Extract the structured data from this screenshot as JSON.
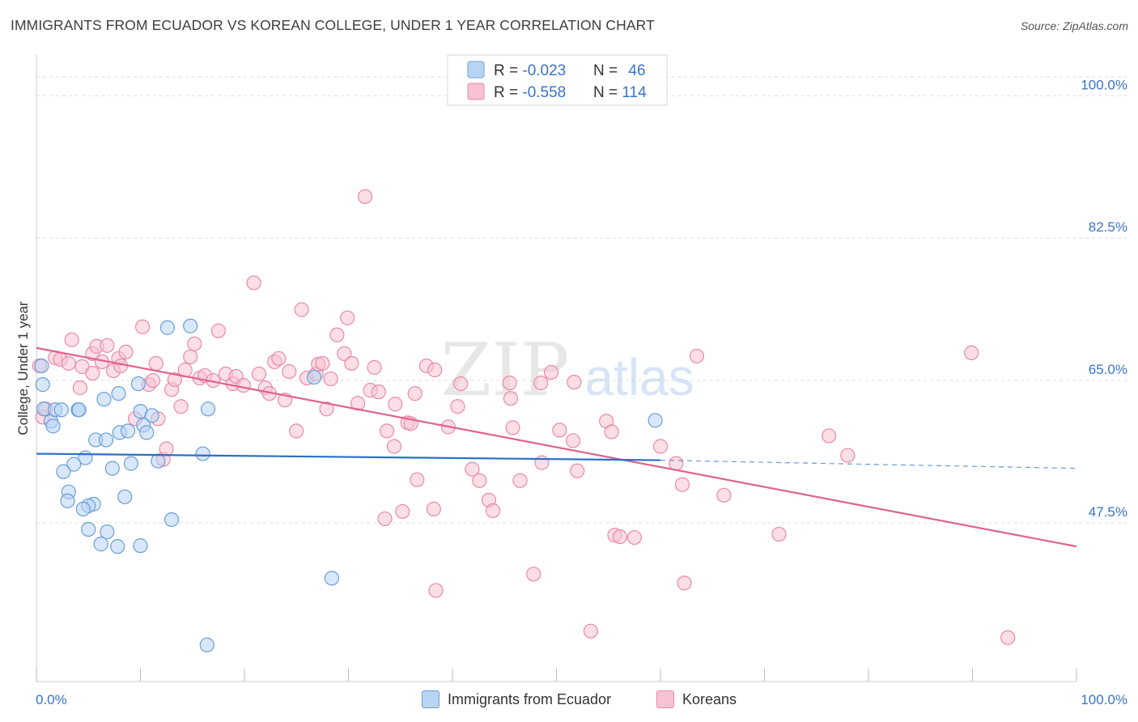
{
  "title": "IMMIGRANTS FROM ECUADOR VS KOREAN COLLEGE, UNDER 1 YEAR CORRELATION CHART",
  "source": "Source: ZipAtlas.com",
  "watermark": {
    "zip": "ZIP",
    "atlas": "atlas"
  },
  "colors": {
    "blue_fill": "#b8d4f4",
    "blue_stroke": "#6a9fd8",
    "blue_line": "#2b6fc7",
    "pink_fill": "#f7c2d2",
    "pink_stroke": "#e98aa8",
    "pink_line": "#e0628e",
    "tick_label": "#3a73c8",
    "grid": "#dddddd"
  },
  "legend": {
    "rows": [
      {
        "r_label": "R = ",
        "r_value": "-0.023",
        "n_label": "N = ",
        "n_value": "46"
      },
      {
        "r_label": "R = ",
        "r_value": "-0.558",
        "n_label": "N = ",
        "n_value": "114"
      }
    ]
  },
  "chart_data": {
    "type": "scatter",
    "title": "IMMIGRANTS FROM ECUADOR VS KOREAN COLLEGE, UNDER 1 YEAR CORRELATION CHART",
    "xlabel": "",
    "ylabel": "College, Under 1 year",
    "xlim": [
      0,
      100
    ],
    "ylim": [
      28,
      105
    ],
    "x_tick_labels": [
      "0.0%",
      "100.0%"
    ],
    "y_ticks": [
      47.5,
      65.0,
      82.5,
      100.0
    ],
    "y_tick_labels": [
      "47.5%",
      "65.0%",
      "82.5%",
      "100.0%"
    ],
    "grid": true,
    "legend_placement": "top-center",
    "series": [
      {
        "name": "Immigrants from Ecuador",
        "color": "#b8d4f4",
        "r": -0.023,
        "n": 46,
        "trend": {
          "x": [
            0,
            60
          ],
          "y": [
            56.0,
            55.2
          ],
          "dashed_to": [
            100,
            54.2
          ]
        },
        "points": [
          [
            0.5,
            66.8
          ],
          [
            0.6,
            64.5
          ],
          [
            0.7,
            61.5
          ],
          [
            1.4,
            60.0
          ],
          [
            1.6,
            59.4
          ],
          [
            1.8,
            61.4
          ],
          [
            2.4,
            61.4
          ],
          [
            4.0,
            61.4
          ],
          [
            4.1,
            61.4
          ],
          [
            6.5,
            62.7
          ],
          [
            7.9,
            63.4
          ],
          [
            9.8,
            64.6
          ],
          [
            10.0,
            61.2
          ],
          [
            12.6,
            71.5
          ],
          [
            14.8,
            71.7
          ],
          [
            16.5,
            61.5
          ],
          [
            11.1,
            60.7
          ],
          [
            10.3,
            59.5
          ],
          [
            8.0,
            58.6
          ],
          [
            5.7,
            57.7
          ],
          [
            6.7,
            57.7
          ],
          [
            4.7,
            55.5
          ],
          [
            3.6,
            54.7
          ],
          [
            2.6,
            53.8
          ],
          [
            7.3,
            54.2
          ],
          [
            9.1,
            54.8
          ],
          [
            11.7,
            55.1
          ],
          [
            16.0,
            56.0
          ],
          [
            3.1,
            51.3
          ],
          [
            3.0,
            50.2
          ],
          [
            5.5,
            49.8
          ],
          [
            8.5,
            50.7
          ],
          [
            5.0,
            49.6
          ],
          [
            4.5,
            49.2
          ],
          [
            13.0,
            47.9
          ],
          [
            5.0,
            46.7
          ],
          [
            6.8,
            46.4
          ],
          [
            6.2,
            44.9
          ],
          [
            7.8,
            44.6
          ],
          [
            10.0,
            44.7
          ],
          [
            28.4,
            40.7
          ],
          [
            16.4,
            32.5
          ],
          [
            8.8,
            58.8
          ],
          [
            10.6,
            58.6
          ],
          [
            26.7,
            65.4
          ],
          [
            59.5,
            60.1
          ]
        ]
      },
      {
        "name": "Koreans",
        "color": "#f7c2d2",
        "r": -0.558,
        "n": 114,
        "trend": {
          "x": [
            0,
            100
          ],
          "y": [
            69.0,
            44.6
          ]
        },
        "points": [
          [
            0.3,
            66.8
          ],
          [
            0.6,
            60.5
          ],
          [
            0.9,
            61.5
          ],
          [
            1.8,
            67.8
          ],
          [
            2.3,
            67.6
          ],
          [
            3.1,
            67.1
          ],
          [
            3.4,
            70.0
          ],
          [
            4.2,
            64.1
          ],
          [
            4.4,
            66.7
          ],
          [
            5.4,
            68.3
          ],
          [
            5.4,
            65.9
          ],
          [
            5.8,
            69.2
          ],
          [
            6.3,
            67.3
          ],
          [
            6.8,
            69.3
          ],
          [
            7.4,
            66.2
          ],
          [
            7.9,
            67.7
          ],
          [
            8.1,
            66.8
          ],
          [
            8.6,
            68.5
          ],
          [
            9.5,
            60.3
          ],
          [
            10.2,
            71.6
          ],
          [
            10.8,
            64.5
          ],
          [
            11.2,
            65.0
          ],
          [
            11.5,
            67.1
          ],
          [
            11.7,
            60.3
          ],
          [
            12.2,
            55.3
          ],
          [
            12.5,
            56.6
          ],
          [
            13.0,
            63.9
          ],
          [
            13.3,
            65.1
          ],
          [
            13.9,
            61.8
          ],
          [
            14.3,
            66.3
          ],
          [
            14.8,
            67.9
          ],
          [
            15.2,
            69.5
          ],
          [
            15.7,
            65.3
          ],
          [
            16.2,
            65.6
          ],
          [
            17.0,
            65.0
          ],
          [
            17.5,
            71.1
          ],
          [
            18.2,
            65.8
          ],
          [
            18.9,
            64.6
          ],
          [
            19.2,
            65.5
          ],
          [
            19.9,
            64.4
          ],
          [
            20.9,
            77.0
          ],
          [
            21.4,
            65.8
          ],
          [
            22.0,
            64.1
          ],
          [
            22.4,
            63.4
          ],
          [
            22.9,
            67.3
          ],
          [
            23.3,
            67.7
          ],
          [
            23.9,
            62.6
          ],
          [
            24.3,
            66.1
          ],
          [
            25.0,
            58.8
          ],
          [
            25.5,
            73.7
          ],
          [
            26.0,
            65.3
          ],
          [
            26.9,
            65.8
          ],
          [
            27.1,
            67.0
          ],
          [
            27.5,
            67.1
          ],
          [
            27.9,
            61.5
          ],
          [
            28.3,
            65.2
          ],
          [
            28.9,
            70.6
          ],
          [
            29.6,
            68.3
          ],
          [
            29.9,
            72.7
          ],
          [
            30.3,
            67.1
          ],
          [
            30.9,
            62.2
          ],
          [
            31.6,
            87.6
          ],
          [
            32.1,
            63.8
          ],
          [
            32.5,
            66.6
          ],
          [
            32.9,
            63.6
          ],
          [
            33.5,
            48.0
          ],
          [
            33.7,
            58.8
          ],
          [
            34.4,
            56.9
          ],
          [
            34.5,
            62.1
          ],
          [
            35.2,
            48.9
          ],
          [
            35.7,
            59.8
          ],
          [
            36.0,
            59.7
          ],
          [
            36.4,
            63.4
          ],
          [
            36.6,
            52.8
          ],
          [
            37.5,
            66.8
          ],
          [
            38.2,
            49.2
          ],
          [
            38.3,
            66.3
          ],
          [
            38.4,
            39.2
          ],
          [
            39.6,
            59.3
          ],
          [
            40.5,
            61.8
          ],
          [
            40.8,
            64.6
          ],
          [
            41.9,
            54.1
          ],
          [
            42.6,
            52.7
          ],
          [
            43.5,
            50.3
          ],
          [
            43.9,
            49.0
          ],
          [
            45.5,
            64.7
          ],
          [
            45.6,
            62.8
          ],
          [
            45.8,
            59.2
          ],
          [
            46.5,
            52.7
          ],
          [
            47.8,
            41.2
          ],
          [
            48.5,
            64.7
          ],
          [
            48.6,
            54.9
          ],
          [
            49.5,
            66.0
          ],
          [
            50.3,
            58.9
          ],
          [
            51.7,
            64.8
          ],
          [
            51.6,
            57.6
          ],
          [
            52.0,
            53.9
          ],
          [
            53.3,
            34.2
          ],
          [
            54.8,
            60.0
          ],
          [
            55.3,
            58.7
          ],
          [
            55.6,
            46.0
          ],
          [
            56.1,
            45.8
          ],
          [
            60.0,
            56.9
          ],
          [
            61.5,
            54.8
          ],
          [
            62.1,
            52.2
          ],
          [
            62.3,
            40.1
          ],
          [
            66.1,
            50.9
          ],
          [
            71.4,
            46.1
          ],
          [
            76.2,
            58.2
          ],
          [
            78.0,
            55.8
          ],
          [
            89.9,
            68.4
          ],
          [
            93.4,
            33.4
          ],
          [
            57.5,
            45.7
          ],
          [
            63.5,
            68.0
          ]
        ]
      }
    ]
  },
  "bottom_legend": [
    {
      "label": "Immigrants from Ecuador"
    },
    {
      "label": "Koreans"
    }
  ]
}
